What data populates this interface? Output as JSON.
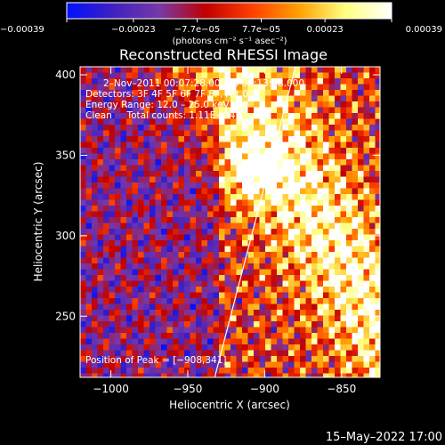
{
  "chart_data": {
    "type": "heatmap",
    "title": "Reconstructed RHESSI Image",
    "xlabel": "Heliocentric X (arcsec)",
    "ylabel": "Heliocentric Y (arcsec)",
    "xlim": [
      -1020,
      -825
    ],
    "ylim": [
      212,
      405
    ],
    "x_ticks": [
      {
        "value": -1000,
        "label": "−1000"
      },
      {
        "value": -950,
        "label": "−950"
      },
      {
        "value": -900,
        "label": "−900"
      },
      {
        "value": -850,
        "label": "−850"
      }
    ],
    "y_ticks": [
      {
        "value": 250,
        "label": "250"
      },
      {
        "value": 300,
        "label": "300"
      },
      {
        "value": 350,
        "label": "350"
      },
      {
        "value": 400,
        "label": "400"
      }
    ],
    "colorbar": {
      "range": [
        -0.00039,
        0.00039
      ],
      "tick_values": [
        -0.00039,
        -0.00023,
        -7.7e-05,
        7.7e-05,
        0.00023,
        0.00039
      ],
      "tick_labels": [
        "−0.00039",
        "−0.00023",
        "−7.7e−05",
        "7.7e−05",
        "0.00023",
        "0.00039"
      ],
      "unit_label": "(photons cm⁻² s⁻¹ asec⁻²)",
      "colors": [
        "#0010ff",
        "#4020c0",
        "#7838a8",
        "#c00000",
        "#ff4000",
        "#ffa000",
        "#ffff80",
        "#ffffff"
      ]
    },
    "annotations": [
      "2–Nov–2011 00:07:28.000 to 00:13:28.000",
      "Detectors: 3F 4F 5F 6F 7F 8F, Att 0",
      "Energy Range: 12.0 – 25.0 keV",
      "Clean     Total counts: 1.11E+04"
    ],
    "peak": {
      "label": "Position of Peak = [−908,341]",
      "x": -908,
      "y": 341
    },
    "limb_line": {
      "x": [
        -937,
        -880
      ],
      "y": [
        212,
        405
      ],
      "color": "#ffffff"
    },
    "grid": false
  },
  "footer": {
    "timestamp": "15–May–2022 17:00"
  }
}
